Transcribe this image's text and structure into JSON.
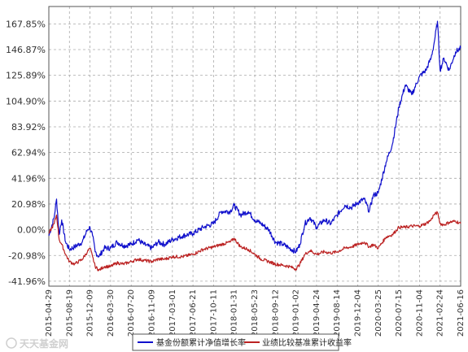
{
  "chart_data": {
    "type": "line",
    "title": "",
    "xlabel": "",
    "ylabel": "",
    "y_ticks": [
      "167.85%",
      "146.87%",
      "125.89%",
      "104.90%",
      "83.92%",
      "62.94%",
      "41.96%",
      "20.98%",
      "0.00%",
      "-20.98%",
      "-41.96%"
    ],
    "y_tick_values": [
      167.85,
      146.87,
      125.89,
      104.9,
      83.92,
      62.94,
      41.96,
      20.98,
      0.0,
      -20.98,
      -41.96
    ],
    "ylim": [
      -46,
      182
    ],
    "x_ticks": [
      "2015-04-29",
      "2015-08-19",
      "2015-12-09",
      "2016-03-30",
      "2016-07-20",
      "2016-11-09",
      "2017-03-01",
      "2017-06-21",
      "2017-10-11",
      "2018-01-31",
      "2018-05-23",
      "2018-09-12",
      "2019-01-02",
      "2019-04-24",
      "2019-08-14",
      "2019-12-04",
      "2020-03-25",
      "2020-07-15",
      "2020-11-04",
      "2021-02-24",
      "2021-06-16"
    ],
    "xlim": [
      "2015-04-29",
      "2021-06-16"
    ],
    "grid": true,
    "legend_position": "bottom-center",
    "series": [
      {
        "name": "基金份额累计净值增长率",
        "color": "#1010cc",
        "x": [
          "2015-04-29",
          "2015-05-28",
          "2015-06-10",
          "2015-06-24",
          "2015-07-08",
          "2015-07-29",
          "2015-08-19",
          "2015-09-16",
          "2015-10-28",
          "2015-11-25",
          "2015-12-09",
          "2015-12-23",
          "2016-01-06",
          "2016-01-27",
          "2016-02-24",
          "2016-03-30",
          "2016-05-04",
          "2016-06-08",
          "2016-07-20",
          "2016-08-24",
          "2016-09-28",
          "2016-11-09",
          "2016-12-14",
          "2017-01-18",
          "2017-03-01",
          "2017-04-26",
          "2017-06-21",
          "2017-08-16",
          "2017-10-11",
          "2017-11-22",
          "2018-01-10",
          "2018-01-31",
          "2018-03-07",
          "2018-04-18",
          "2018-05-23",
          "2018-06-27",
          "2018-08-08",
          "2018-09-12",
          "2018-10-24",
          "2018-11-28",
          "2019-01-02",
          "2019-01-23",
          "2019-02-20",
          "2019-03-20",
          "2019-04-24",
          "2019-06-05",
          "2019-07-10",
          "2019-08-14",
          "2019-09-25",
          "2019-10-30",
          "2019-12-04",
          "2020-01-08",
          "2020-02-05",
          "2020-02-26",
          "2020-03-25",
          "2020-05-06",
          "2020-06-10",
          "2020-07-15",
          "2020-08-19",
          "2020-09-23",
          "2020-11-04",
          "2020-12-09",
          "2021-01-06",
          "2021-01-20",
          "2021-02-10",
          "2021-02-24",
          "2021-03-17",
          "2021-04-14",
          "2021-05-19",
          "2021-06-16"
        ],
        "values": [
          -5,
          10,
          25,
          -4,
          8,
          -10,
          -16,
          -14,
          -10,
          0,
          2,
          -5,
          -18,
          -22,
          -15,
          -15,
          -10,
          -13,
          -12,
          -8,
          -12,
          -15,
          -10,
          -12,
          -8,
          -5,
          -3,
          2,
          5,
          15,
          15,
          20,
          12,
          15,
          8,
          5,
          0,
          -10,
          -12,
          -15,
          -18,
          -12,
          5,
          10,
          2,
          8,
          5,
          12,
          20,
          18,
          22,
          25,
          15,
          28,
          30,
          55,
          70,
          100,
          118,
          110,
          125,
          130,
          140,
          150,
          170,
          130,
          140,
          130,
          145,
          148
        ]
      },
      {
        "name": "业绩比较基准累计收益率",
        "color": "#bb2222",
        "x": [
          "2015-04-29",
          "2015-05-28",
          "2015-06-10",
          "2015-06-24",
          "2015-07-08",
          "2015-07-29",
          "2015-08-19",
          "2015-09-16",
          "2015-10-28",
          "2015-11-25",
          "2015-12-09",
          "2015-12-23",
          "2016-01-06",
          "2016-01-27",
          "2016-02-24",
          "2016-03-30",
          "2016-05-04",
          "2016-06-08",
          "2016-07-20",
          "2016-08-24",
          "2016-09-28",
          "2016-11-09",
          "2016-12-14",
          "2017-01-18",
          "2017-03-01",
          "2017-04-26",
          "2017-06-21",
          "2017-08-16",
          "2017-10-11",
          "2017-11-22",
          "2018-01-10",
          "2018-01-31",
          "2018-03-07",
          "2018-04-18",
          "2018-05-23",
          "2018-06-27",
          "2018-08-08",
          "2018-09-12",
          "2018-10-24",
          "2018-11-28",
          "2019-01-02",
          "2019-01-23",
          "2019-02-20",
          "2019-03-20",
          "2019-04-24",
          "2019-06-05",
          "2019-07-10",
          "2019-08-14",
          "2019-09-25",
          "2019-10-30",
          "2019-12-04",
          "2020-01-08",
          "2020-02-05",
          "2020-02-26",
          "2020-03-25",
          "2020-05-06",
          "2020-06-10",
          "2020-07-15",
          "2020-08-19",
          "2020-09-23",
          "2020-11-04",
          "2020-12-09",
          "2021-01-06",
          "2021-01-20",
          "2021-02-10",
          "2021-02-24",
          "2021-03-17",
          "2021-04-14",
          "2021-05-19",
          "2021-06-16"
        ],
        "values": [
          -3,
          5,
          12,
          -8,
          -12,
          -20,
          -26,
          -28,
          -24,
          -18,
          -15,
          -22,
          -30,
          -33,
          -30,
          -30,
          -27,
          -28,
          -26,
          -24,
          -25,
          -26,
          -24,
          -24,
          -22,
          -22,
          -20,
          -16,
          -14,
          -12,
          -10,
          -7,
          -14,
          -16,
          -20,
          -24,
          -26,
          -28,
          -29,
          -30,
          -32,
          -28,
          -20,
          -17,
          -20,
          -18,
          -19,
          -18,
          -15,
          -14,
          -12,
          -10,
          -14,
          -12,
          -15,
          -6,
          -4,
          2,
          2,
          3,
          3,
          5,
          8,
          12,
          14,
          5,
          4,
          6,
          7,
          5
        ]
      }
    ]
  },
  "watermark": "天天基金网"
}
